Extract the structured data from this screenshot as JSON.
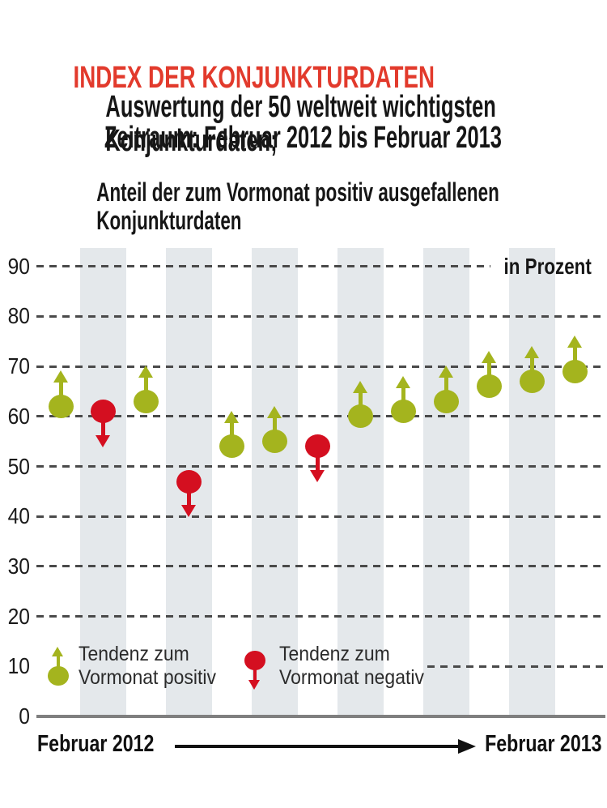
{
  "header": {
    "title": "INDEX DER KONJUNKTURDATEN",
    "subtitle_line1": "Auswertung der 50 weltweit wichtigsten Konjunkturdaten;",
    "subtitle_line2": "Zeitraum: Februar 2012 bis Februar 2013",
    "measure_label": "Anteil der zum Vormonat positiv ausgefallenen Konjunkturdaten"
  },
  "chart_data": {
    "type": "scatter",
    "title": "Anteil der zum Vormonat positiv ausgefallenen Konjunkturdaten",
    "unit_label": "in Prozent",
    "x_start_label": "Februar 2012",
    "x_end_label": "Februar 2013",
    "y_ticks": [
      90,
      80,
      70,
      60,
      50,
      40,
      30,
      20,
      10,
      0
    ],
    "ylim": [
      0,
      94
    ],
    "grid": "dashed-horizontal",
    "striped_month_slots": [
      2,
      4,
      6,
      8,
      10,
      12
    ],
    "points": [
      {
        "month_index": 1,
        "value": 62,
        "tendency": "positiv"
      },
      {
        "month_index": 2,
        "value": 61,
        "tendency": "negativ"
      },
      {
        "month_index": 3,
        "value": 63,
        "tendency": "positiv"
      },
      {
        "month_index": 4,
        "value": 47,
        "tendency": "negativ"
      },
      {
        "month_index": 5,
        "value": 54,
        "tendency": "positiv"
      },
      {
        "month_index": 6,
        "value": 55,
        "tendency": "positiv"
      },
      {
        "month_index": 7,
        "value": 54,
        "tendency": "negativ"
      },
      {
        "month_index": 8,
        "value": 60,
        "tendency": "positiv"
      },
      {
        "month_index": 9,
        "value": 61,
        "tendency": "positiv"
      },
      {
        "month_index": 10,
        "value": 63,
        "tendency": "positiv"
      },
      {
        "month_index": 11,
        "value": 66,
        "tendency": "positiv"
      },
      {
        "month_index": 12,
        "value": 67,
        "tendency": "positiv"
      },
      {
        "month_index": 13,
        "value": 69,
        "tendency": "positiv"
      }
    ],
    "colors": {
      "positiv": "#a4b41e",
      "negativ": "#d40f20",
      "stripe": "#e4e8eb",
      "grid": "#4a4a4a",
      "axis": "#7f7f7f",
      "title_red": "#e23a2c"
    }
  },
  "legend": {
    "positive": {
      "line1": "Tendenz zum",
      "line2": "Vormonat positiv"
    },
    "negative": {
      "line1": "Tendenz zum",
      "line2": "Vormonat negativ"
    }
  }
}
